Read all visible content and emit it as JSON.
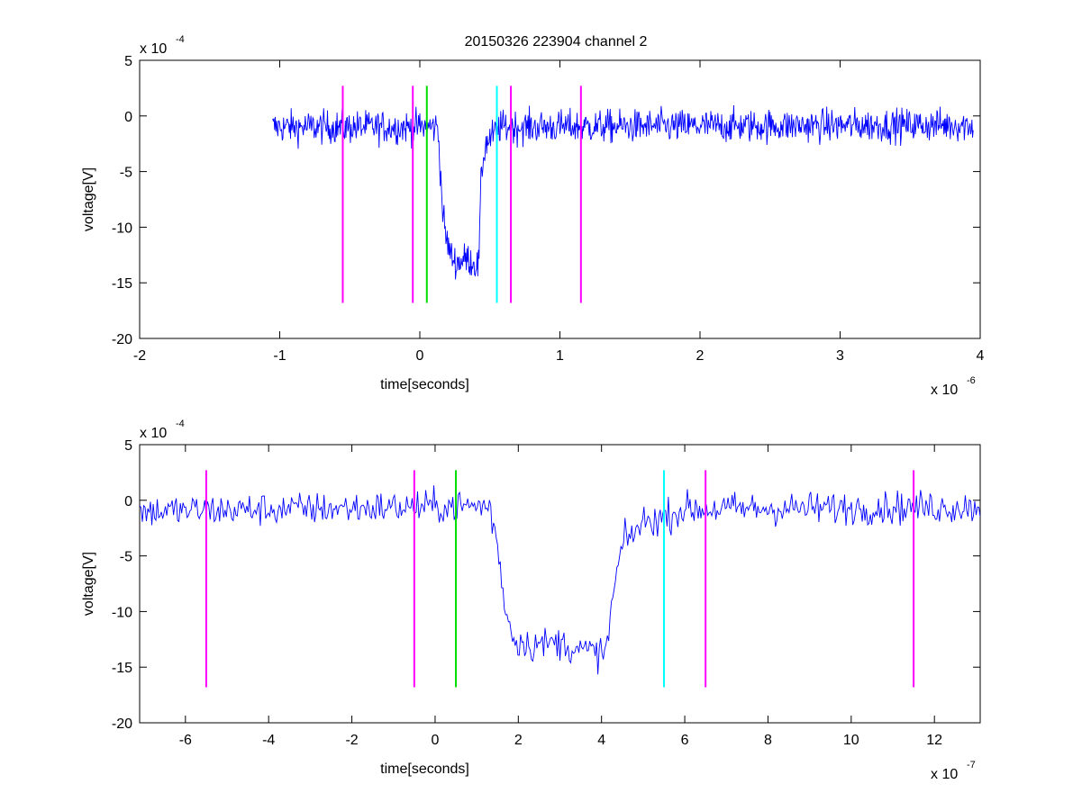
{
  "figure_title": "20150326 223904 channel 2",
  "colors": {
    "trace": "#0000ff",
    "window_marker": "#ff00ff",
    "start_marker": "#00dd00",
    "end_marker": "#00ffff"
  },
  "chart_data": [
    {
      "type": "line",
      "title": "20150326 223904 channel 2",
      "xlabel": "time[seconds]",
      "ylabel": "voltage[V]",
      "x_exponent_label": "x 10",
      "x_exponent": "-6",
      "y_exponent_label": "x 10",
      "y_exponent": "-4",
      "xlim": [
        -2,
        4
      ],
      "ylim": [
        -20,
        5
      ],
      "xticks": [
        -2,
        -1,
        0,
        1,
        2,
        3,
        4
      ],
      "xtick_labels": [
        "-2",
        "-1",
        "0",
        "1",
        "2",
        "3",
        "4"
      ],
      "yticks": [
        -20,
        -15,
        -10,
        -5,
        0,
        5
      ],
      "ytick_labels": [
        "-20",
        "-15",
        "-10",
        "-5",
        "0",
        "5"
      ],
      "grid": false,
      "series": [
        {
          "color": "#0000ff",
          "noise": 1.0,
          "x_range": [
            -1.05,
            3.95
          ],
          "points": [
            [
              -1.05,
              -1.0
            ],
            [
              0.13,
              -1.0
            ],
            [
              0.16,
              -8.0
            ],
            [
              0.18,
              -10.5
            ],
            [
              0.22,
              -12.5
            ],
            [
              0.26,
              -13.2
            ],
            [
              0.34,
              -12.8
            ],
            [
              0.42,
              -13.5
            ],
            [
              0.44,
              -5.0
            ],
            [
              0.47,
              -2.5
            ],
            [
              0.52,
              -1.8
            ],
            [
              0.57,
              -1.0
            ],
            [
              3.95,
              -0.8
            ]
          ]
        }
      ],
      "markers": [
        {
          "x": -0.55,
          "color": "#ff00ff"
        },
        {
          "x": -0.05,
          "color": "#ff00ff"
        },
        {
          "x": 0.05,
          "color": "#00dd00"
        },
        {
          "x": 0.55,
          "color": "#00ffff"
        },
        {
          "x": 0.65,
          "color": "#ff00ff"
        },
        {
          "x": 1.15,
          "color": "#ff00ff"
        }
      ],
      "marker_y_range": [
        -16.8,
        2.7
      ]
    },
    {
      "type": "line",
      "title": "",
      "xlabel": "time[seconds]",
      "ylabel": "voltage[V]",
      "x_exponent_label": "x 10",
      "x_exponent": "-7",
      "y_exponent_label": "x 10",
      "y_exponent": "-4",
      "xlim": [
        -7.1,
        13.1
      ],
      "ylim": [
        -20,
        5
      ],
      "xticks": [
        -6,
        -4,
        -2,
        0,
        2,
        4,
        6,
        8,
        10,
        12
      ],
      "xtick_labels": [
        "-6",
        "-4",
        "-2",
        "0",
        "2",
        "4",
        "6",
        "8",
        "10",
        "12"
      ],
      "yticks": [
        -20,
        -15,
        -10,
        -5,
        0,
        5
      ],
      "ytick_labels": [
        "-20",
        "-15",
        "-10",
        "-5",
        "0",
        "5"
      ],
      "grid": false,
      "series": [
        {
          "color": "#0000ff",
          "noise": 1.0,
          "x_range": [
            -7.1,
            13.1
          ],
          "points": [
            [
              -7.1,
              -1.0
            ],
            [
              1.3,
              -0.5
            ],
            [
              1.5,
              -4.0
            ],
            [
              1.7,
              -10.0
            ],
            [
              1.9,
              -12.5
            ],
            [
              2.3,
              -13.0
            ],
            [
              3.0,
              -12.8
            ],
            [
              3.5,
              -13.5
            ],
            [
              4.1,
              -13.8
            ],
            [
              4.3,
              -8.0
            ],
            [
              4.5,
              -4.0
            ],
            [
              5.0,
              -2.0
            ],
            [
              5.5,
              -1.5
            ],
            [
              6.0,
              -0.8
            ],
            [
              13.1,
              -0.6
            ]
          ]
        }
      ],
      "markers": [
        {
          "x": -5.5,
          "color": "#ff00ff"
        },
        {
          "x": -0.5,
          "color": "#ff00ff"
        },
        {
          "x": 0.5,
          "color": "#00dd00"
        },
        {
          "x": 5.5,
          "color": "#00ffff"
        },
        {
          "x": 6.5,
          "color": "#ff00ff"
        },
        {
          "x": 11.5,
          "color": "#ff00ff"
        }
      ],
      "marker_y_range": [
        -16.8,
        2.7
      ]
    }
  ]
}
